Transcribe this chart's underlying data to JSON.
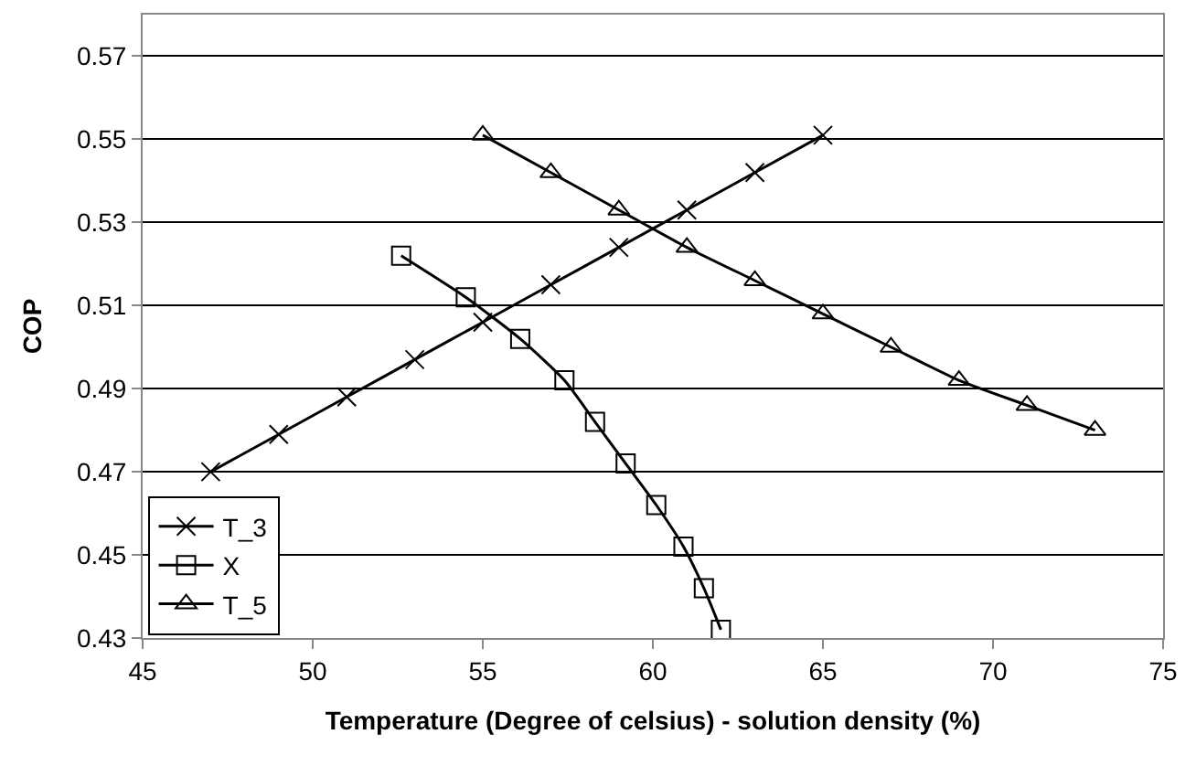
{
  "chart_data": {
    "type": "line",
    "xlabel": "Temperature (Degree of celsius) - solution density (%)",
    "ylabel": "COP",
    "xlim": [
      45,
      75
    ],
    "xticks": [
      45,
      50,
      55,
      60,
      65,
      70,
      75
    ],
    "ylim": [
      0.43,
      0.58
    ],
    "yticks": [
      0.43,
      0.45,
      0.47,
      0.49,
      0.51,
      0.53,
      0.55,
      0.57
    ],
    "grid": "y",
    "legend": "bottom left",
    "line_style": "solid",
    "series": [
      {
        "name": "T_3",
        "color": "#000000",
        "marker": "cross",
        "x": [
          47,
          49,
          51,
          53,
          55,
          57,
          59,
          61,
          63,
          65
        ],
        "values": [
          0.47,
          0.479,
          0.488,
          0.497,
          0.506,
          0.515,
          0.524,
          0.533,
          0.542,
          0.551
        ]
      },
      {
        "name": "X",
        "color": "#000000",
        "marker": "square",
        "x": [
          52.6,
          54.5,
          56.1,
          57.4,
          58.3,
          59.2,
          60.1,
          60.9,
          61.5,
          62.0
        ],
        "values": [
          0.522,
          0.512,
          0.502,
          0.492,
          0.482,
          0.472,
          0.462,
          0.452,
          0.442,
          0.432
        ]
      },
      {
        "name": "T_5",
        "color": "#000000",
        "marker": "triangle",
        "x": [
          55,
          57,
          59,
          61,
          63,
          65,
          67,
          69,
          71,
          73
        ],
        "values": [
          0.551,
          0.542,
          0.533,
          0.524,
          0.516,
          0.508,
          0.5,
          0.492,
          0.486,
          0.48
        ]
      }
    ]
  }
}
